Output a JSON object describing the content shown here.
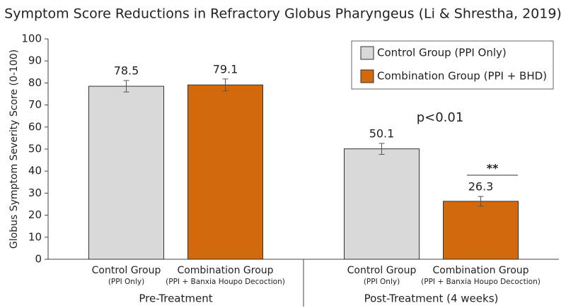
{
  "chart_data": {
    "type": "grouped-bar",
    "title": "Symptom Score Reductions in Refractory Globus Pharyngeus (Li & Shrestha, 2019)",
    "ylabel": "Globus Symptom Severity Score (0-100)",
    "categories": [
      "Pre-Treatment",
      "Post-Treatment (4 weeks)"
    ],
    "series": [
      {
        "name": "Control Group (PPI Only)",
        "axis_label": "Control Group",
        "axis_sublabel": "(PPI Only)",
        "color": "#d9d9d9",
        "values": [
          78.5,
          50.1
        ],
        "errors": [
          2.6,
          2.5
        ]
      },
      {
        "name": "Combination Group (PPI + BHD)",
        "axis_label": "Combination Group",
        "axis_sublabel": "(PPI + Banxia Houpo Decoction)",
        "color": "#d2690c",
        "values": [
          79.1,
          26.3
        ],
        "errors": [
          2.7,
          2.2
        ]
      }
    ],
    "ylim": [
      0,
      100
    ],
    "yticks": [
      0,
      10,
      20,
      30,
      40,
      50,
      60,
      70,
      80,
      90,
      100
    ],
    "legend": "upper right",
    "annotations": [
      "p<0.01",
      "**"
    ]
  }
}
